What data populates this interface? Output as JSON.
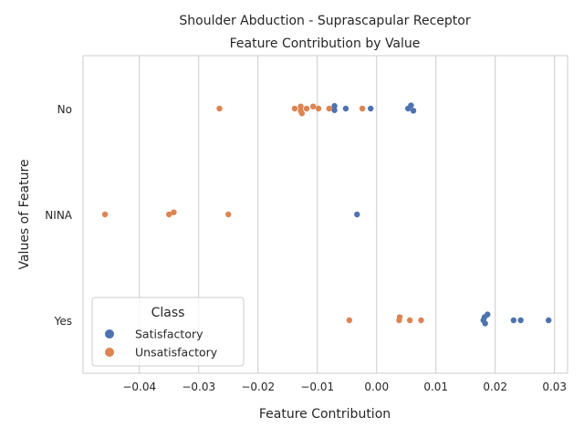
{
  "chart_data": {
    "type": "scatter",
    "title_line1": "Shoulder Abduction - Suprascapular Receptor",
    "title_line2": "Feature Contribution by Value",
    "xlabel": "Feature Contribution",
    "ylabel": "Values of Feature",
    "xlim": [
      -0.0495,
      0.0322
    ],
    "x_ticks": [
      -0.04,
      -0.03,
      -0.02,
      -0.01,
      0.0,
      0.01,
      0.02,
      0.03
    ],
    "x_tick_labels": [
      "−0.04",
      "−0.03",
      "−0.02",
      "−0.01",
      "0.00",
      "0.01",
      "0.02",
      "0.03"
    ],
    "categories": [
      "No",
      "NINA",
      "Yes"
    ],
    "grid": "vertical",
    "legend": {
      "title": "Class",
      "placement": "lower-left"
    },
    "series": [
      {
        "name": "Satisfactory",
        "color": "#4c72b0",
        "points": [
          {
            "category": "No",
            "x": -0.0071,
            "jitter": -0.05
          },
          {
            "category": "No",
            "x": -0.0071,
            "jitter": 0.03
          },
          {
            "category": "No",
            "x": -0.0052,
            "jitter": 0.0
          },
          {
            "category": "No",
            "x": -0.001,
            "jitter": 0.0
          },
          {
            "category": "No",
            "x": 0.0053,
            "jitter": 0.0
          },
          {
            "category": "No",
            "x": 0.0058,
            "jitter": -0.06
          },
          {
            "category": "No",
            "x": 0.0062,
            "jitter": 0.04
          },
          {
            "category": "NINA",
            "x": -0.0033,
            "jitter": 0.0
          },
          {
            "category": "Yes",
            "x": 0.018,
            "jitter": 0.0
          },
          {
            "category": "Yes",
            "x": 0.0182,
            "jitter": -0.06
          },
          {
            "category": "Yes",
            "x": 0.0183,
            "jitter": 0.06
          },
          {
            "category": "Yes",
            "x": 0.0187,
            "jitter": -0.11
          },
          {
            "category": "Yes",
            "x": 0.0231,
            "jitter": 0.0
          },
          {
            "category": "Yes",
            "x": 0.0243,
            "jitter": 0.0
          },
          {
            "category": "Yes",
            "x": 0.029,
            "jitter": 0.0
          }
        ]
      },
      {
        "name": "Unsatisfactory",
        "color": "#dd8452",
        "points": [
          {
            "category": "No",
            "x": -0.0265,
            "jitter": 0.0
          },
          {
            "category": "No",
            "x": -0.0138,
            "jitter": 0.0
          },
          {
            "category": "No",
            "x": -0.0128,
            "jitter": -0.04
          },
          {
            "category": "No",
            "x": -0.0128,
            "jitter": 0.04
          },
          {
            "category": "No",
            "x": -0.0126,
            "jitter": 0.09
          },
          {
            "category": "No",
            "x": -0.0118,
            "jitter": 0.0
          },
          {
            "category": "No",
            "x": -0.0107,
            "jitter": -0.04
          },
          {
            "category": "No",
            "x": -0.0098,
            "jitter": 0.0
          },
          {
            "category": "No",
            "x": -0.008,
            "jitter": 0.0
          },
          {
            "category": "No",
            "x": -0.0024,
            "jitter": 0.0
          },
          {
            "category": "NINA",
            "x": -0.0458,
            "jitter": 0.0
          },
          {
            "category": "NINA",
            "x": -0.035,
            "jitter": 0.0
          },
          {
            "category": "NINA",
            "x": -0.0342,
            "jitter": -0.04
          },
          {
            "category": "NINA",
            "x": -0.025,
            "jitter": 0.0
          },
          {
            "category": "Yes",
            "x": -0.0046,
            "jitter": 0.0
          },
          {
            "category": "Yes",
            "x": 0.0038,
            "jitter": 0.0
          },
          {
            "category": "Yes",
            "x": 0.0039,
            "jitter": -0.06
          },
          {
            "category": "Yes",
            "x": 0.0056,
            "jitter": 0.0
          },
          {
            "category": "Yes",
            "x": 0.0075,
            "jitter": 0.0
          }
        ]
      }
    ]
  }
}
